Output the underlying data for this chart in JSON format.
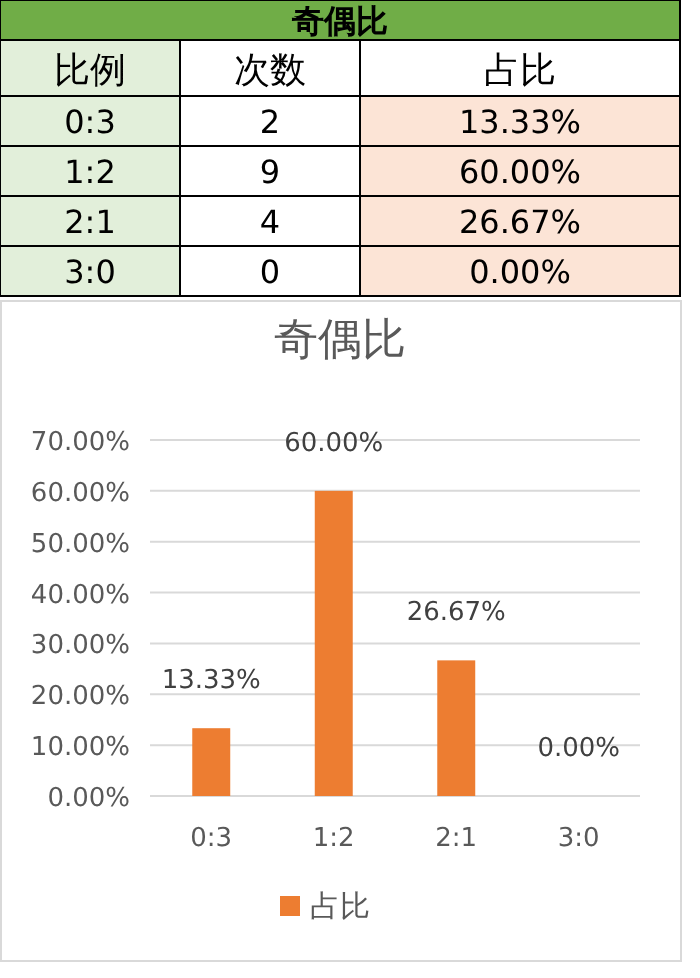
{
  "chart_data": [
    {
      "type": "other",
      "title": "奇偶比",
      "annotations": [
        "比例",
        "次数",
        "占比",
        "0:3",
        "2",
        "13.33%",
        "1:2",
        "9",
        "60.00%",
        "2:1",
        "4",
        "26.67%",
        "3:0",
        "0",
        "0.00%"
      ]
    },
    {
      "type": "bar",
      "title": "奇偶比",
      "categories": [
        "0:3",
        "1:2",
        "2:1",
        "3:0"
      ],
      "series": [
        {
          "name": "占比",
          "color": "#ed7d31",
          "values": [
            13.33,
            60,
            26.67,
            0
          ],
          "value_labels": [
            "13.33%",
            "60.00%",
            "26.67%",
            "0.00%"
          ]
        }
      ],
      "ylim": [
        0,
        70
      ],
      "yticks": [
        {
          "value": 0,
          "label": "0.00%"
        },
        {
          "value": 10,
          "label": "10.00%"
        },
        {
          "value": 20,
          "label": "20.00%"
        },
        {
          "value": 30,
          "label": "30.00%"
        },
        {
          "value": 40,
          "label": "40.00%"
        },
        {
          "value": 50,
          "label": "50.00%"
        },
        {
          "value": 60,
          "label": "60.00%"
        },
        {
          "value": 70,
          "label": "70.00%"
        }
      ],
      "grid": "y",
      "legend": "bottom"
    }
  ]
}
